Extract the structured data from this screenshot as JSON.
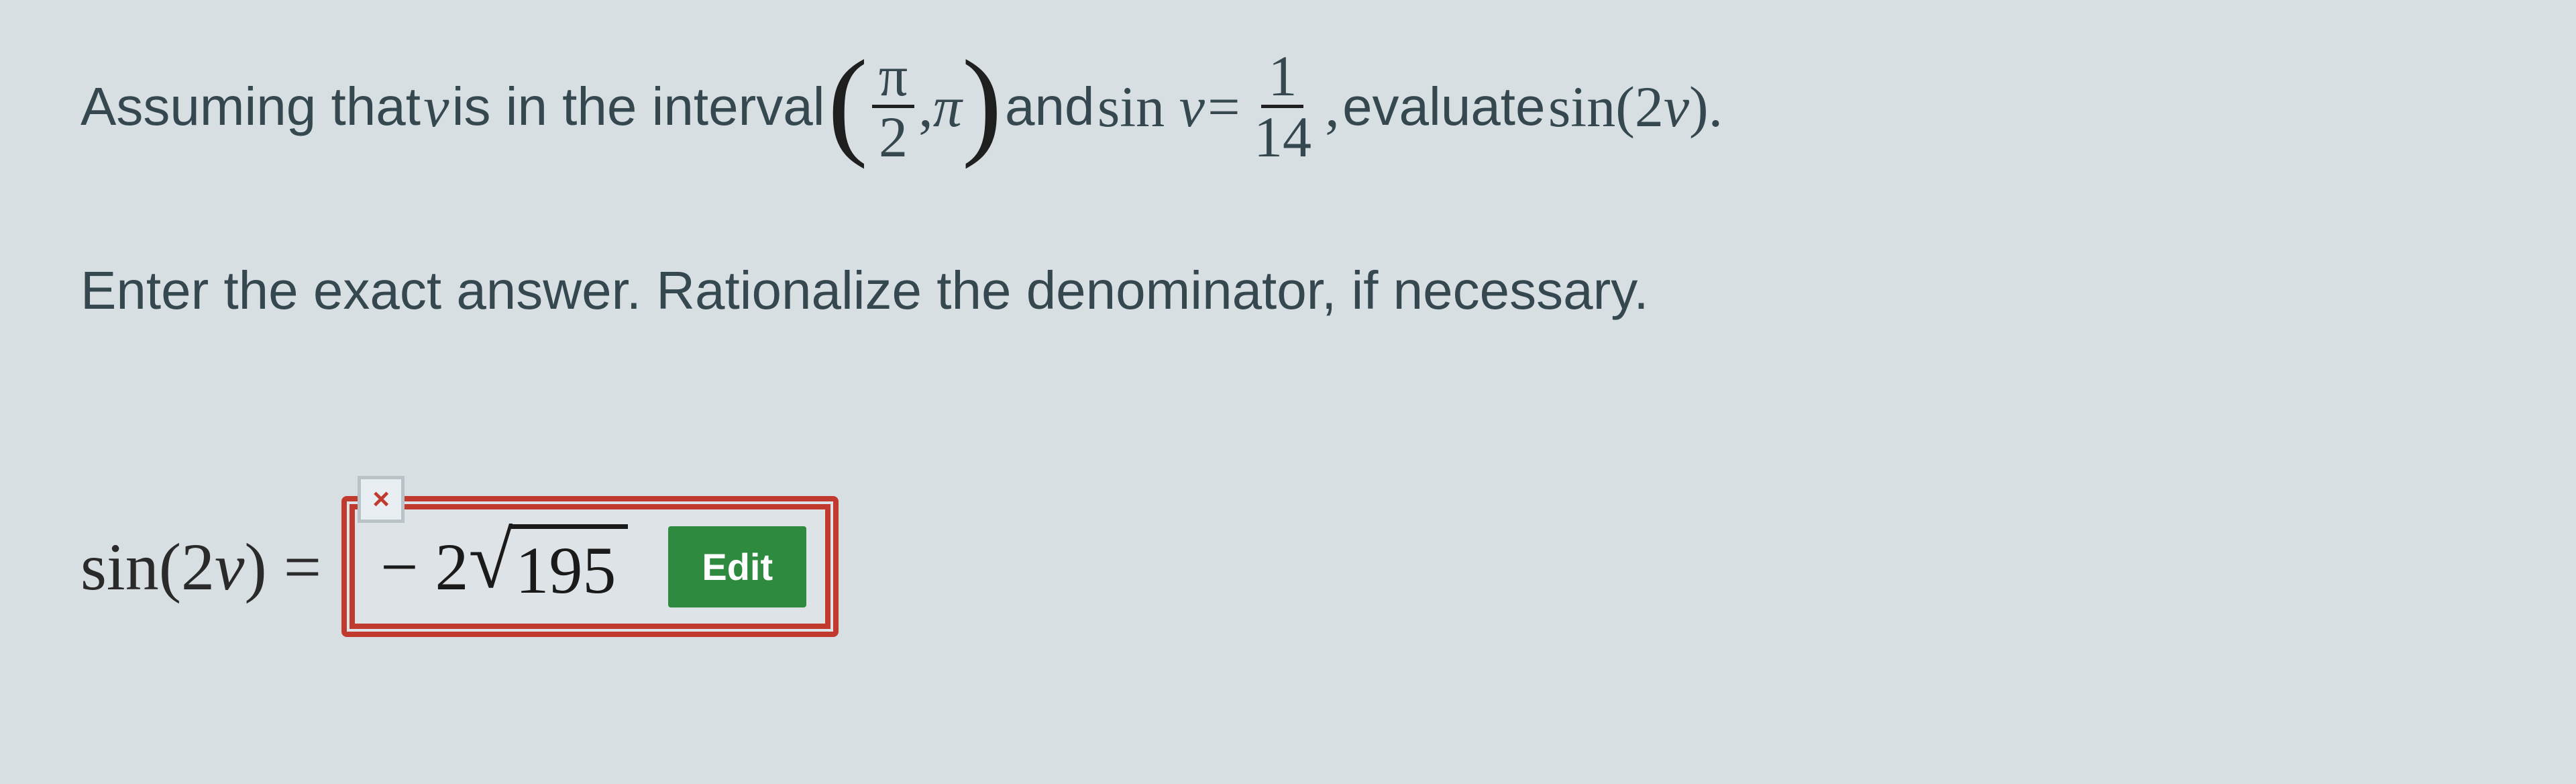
{
  "problem": {
    "line1_part1_sans": "Assuming that ",
    "var_v": "v",
    "line1_part2_sans": " is in the interval ",
    "interval": {
      "num": "π",
      "den": "2",
      "comma": ", ",
      "right": "π"
    },
    "line1_part3_sans": " and ",
    "sin_v_expr": "sin ",
    "equals": " = ",
    "rhs_frac": {
      "num": "1",
      "den": "14"
    },
    "comma2": ", ",
    "line1_part4_sans": "evaluate ",
    "target_expr_sin": "sin(2",
    "target_expr_close": ").",
    "line2": "Enter the exact answer. Rationalize the denominator, if necessary."
  },
  "answer": {
    "label_sin": "sin(2",
    "label_close": ") = ",
    "entered_prefix": "− 2",
    "entered_radicand": "195",
    "badge_symbol": "×",
    "edit_label": "Edit"
  },
  "style": {
    "background": "#d8dfe2",
    "text_color": "#35474f",
    "error_border": "#c03a2d",
    "edit_button_bg": "#2d8a3e",
    "edit_button_fg": "#ffffff",
    "badge_bg": "#e8eef1",
    "badge_border": "#b9c2c7",
    "problem_font_size_pt": 64,
    "math_font_size_pt": 70,
    "answer_font_size_pt": 75,
    "font_family_text": "Verdana",
    "font_family_math": "Times New Roman"
  }
}
